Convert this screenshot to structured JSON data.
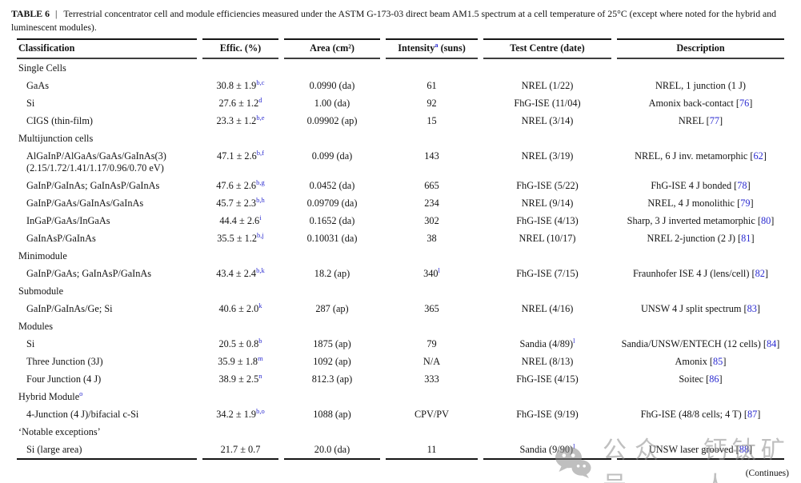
{
  "colors": {
    "footnote_blue": "#2b2bd0",
    "rule_dark": "#161616",
    "watermark_gray": "#8c8c8c"
  },
  "title": {
    "label": "TABLE 6",
    "separator": "|",
    "caption": "Terrestrial concentrator cell and module efficiencies measured under the ASTM G-173-03 direct beam AM1.5 spectrum at a cell temperature of 25°C (except where noted for the hybrid and luminescent modules)."
  },
  "table": {
    "columns": [
      {
        "label": "Classification"
      },
      {
        "label": "Effic. (%)"
      },
      {
        "label": "Area (cm²)"
      },
      {
        "pre": "Intensity",
        "sup": "a",
        "post": " (suns)"
      },
      {
        "label": "Test Centre (date)"
      },
      {
        "label": "Description"
      }
    ],
    "rows": [
      {
        "t": "s",
        "c": "Single Cells",
        "cs": ""
      },
      {
        "t": "d",
        "c": "GaAs",
        "c2": "",
        "e": "30.8 ± 1.9",
        "es": "b,c",
        "a": "0.0990 (da)",
        "i": "61",
        "is": "",
        "tc": "NREL (1/22)",
        "tcs": "",
        "d": "NREL, 1 junction (1 J)",
        "r": ""
      },
      {
        "t": "d",
        "c": "Si",
        "c2": "",
        "e": "27.6 ± 1.2",
        "es": "d",
        "a": "1.00 (da)",
        "i": "92",
        "is": "",
        "tc": "FhG-ISE (11/04)",
        "tcs": "",
        "d": "Amonix back-contact",
        "r": "76"
      },
      {
        "t": "d",
        "c": "CIGS (thin-film)",
        "c2": "",
        "e": "23.3 ± 1.2",
        "es": "b,e",
        "a": "0.09902 (ap)",
        "i": "15",
        "is": "",
        "tc": "NREL (3/14)",
        "tcs": "",
        "d": "NREL",
        "r": "77"
      },
      {
        "t": "s",
        "c": "Multijunction cells",
        "cs": ""
      },
      {
        "t": "d",
        "c": "AlGaInP/AlGaAs/GaAs/GaInAs(3)",
        "c2": "(2.15/1.72/1.41/1.17/0.96/0.70 eV)",
        "e": "47.1 ± 2.6",
        "es": "b,f",
        "a": "0.099 (da)",
        "i": "143",
        "is": "",
        "tc": "NREL (3/19)",
        "tcs": "",
        "d": "NREL, 6 J inv. metamorphic",
        "r": "62"
      },
      {
        "t": "d",
        "c": "GaInP/GaInAs; GaInAsP/GaInAs",
        "c2": "",
        "e": "47.6 ± 2.6",
        "es": "b,g",
        "a": "0.0452 (da)",
        "i": "665",
        "is": "",
        "tc": "FhG-ISE (5/22)",
        "tcs": "",
        "d": "FhG-ISE 4 J bonded",
        "r": "78"
      },
      {
        "t": "d",
        "c": "GaInP/GaAs/GaInAs/GaInAs",
        "c2": "",
        "e": "45.7 ± 2.3",
        "es": "b,h",
        "a": "0.09709 (da)",
        "i": "234",
        "is": "",
        "tc": "NREL (9/14)",
        "tcs": "",
        "d": "NREL, 4 J monolithic",
        "r": "79"
      },
      {
        "t": "d",
        "c": "InGaP/GaAs/InGaAs",
        "c2": "",
        "e": "44.4 ± 2.6",
        "es": "i",
        "a": "0.1652 (da)",
        "i": "302",
        "is": "",
        "tc": "FhG-ISE (4/13)",
        "tcs": "",
        "d": "Sharp, 3 J inverted metamorphic",
        "r": "80"
      },
      {
        "t": "d",
        "c": "GaInAsP/GaInAs",
        "c2": "",
        "e": "35.5 ± 1.2",
        "es": "b,j",
        "a": "0.10031 (da)",
        "i": "38",
        "is": "",
        "tc": "NREL (10/17)",
        "tcs": "",
        "d": "NREL 2-junction (2 J)",
        "r": "81"
      },
      {
        "t": "s",
        "c": "Minimodule",
        "cs": ""
      },
      {
        "t": "d",
        "c": "GaInP/GaAs; GaInAsP/GaInAs",
        "c2": "",
        "e": "43.4 ± 2.4",
        "es": "b,k",
        "a": "18.2 (ap)",
        "i": "340",
        "is": "l",
        "tc": "FhG-ISE (7/15)",
        "tcs": "",
        "d": "Fraunhofer ISE 4 J (lens/cell)",
        "r": "82"
      },
      {
        "t": "s",
        "c": "Submodule",
        "cs": ""
      },
      {
        "t": "d",
        "c": "GaInP/GaInAs/Ge; Si",
        "c2": "",
        "e": "40.6 ± 2.0",
        "es": "k",
        "a": "287 (ap)",
        "i": "365",
        "is": "",
        "tc": "NREL (4/16)",
        "tcs": "",
        "d": "UNSW 4 J split spectrum",
        "r": "83"
      },
      {
        "t": "s",
        "c": "Modules",
        "cs": ""
      },
      {
        "t": "d",
        "c": "Si",
        "c2": "",
        "e": "20.5 ± 0.8",
        "es": "b",
        "a": "1875 (ap)",
        "i": "79",
        "is": "",
        "tc": "Sandia (4/89)",
        "tcs": "l",
        "d": "Sandia/UNSW/ENTECH (12 cells)",
        "r": "84"
      },
      {
        "t": "d",
        "c": "Three Junction (3J)",
        "c2": "",
        "e": "35.9 ± 1.8",
        "es": "m",
        "a": "1092 (ap)",
        "i": "N/A",
        "is": "",
        "tc": "NREL (8/13)",
        "tcs": "",
        "d": "Amonix",
        "r": "85"
      },
      {
        "t": "d",
        "c": "Four Junction (4 J)",
        "c2": "",
        "e": "38.9 ± 2.5",
        "es": "n",
        "a": "812.3 (ap)",
        "i": "333",
        "is": "",
        "tc": "FhG-ISE (4/15)",
        "tcs": "",
        "d": "Soitec",
        "r": "86"
      },
      {
        "t": "s",
        "c": "Hybrid Module",
        "cs": "o"
      },
      {
        "t": "d",
        "c": "4-Junction (4 J)/bifacial c-Si",
        "c2": "",
        "e": "34.2 ± 1.9",
        "es": "b,o",
        "a": "1088 (ap)",
        "i": "CPV/PV",
        "is": "",
        "tc": "FhG-ISE (9/19)",
        "tcs": "",
        "d": "FhG-ISE (48/8 cells; 4 T)",
        "r": "87"
      },
      {
        "t": "s",
        "c": "‘Notable exceptions’",
        "cs": ""
      },
      {
        "t": "d",
        "c": "Si (large area)",
        "c2": "",
        "e": "21.7 ± 0.7",
        "es": "",
        "a": "20.0 (da)",
        "i": "11",
        "is": "",
        "tc": "Sandia (9/90)",
        "tcs": "l",
        "d": "UNSW laser grooved",
        "r": "88"
      }
    ]
  },
  "footer": {
    "continues": "(Continues)"
  },
  "watermark": {
    "icon": "wechat-icon",
    "label1": "公众号",
    "label2": "钙钛矿人"
  }
}
